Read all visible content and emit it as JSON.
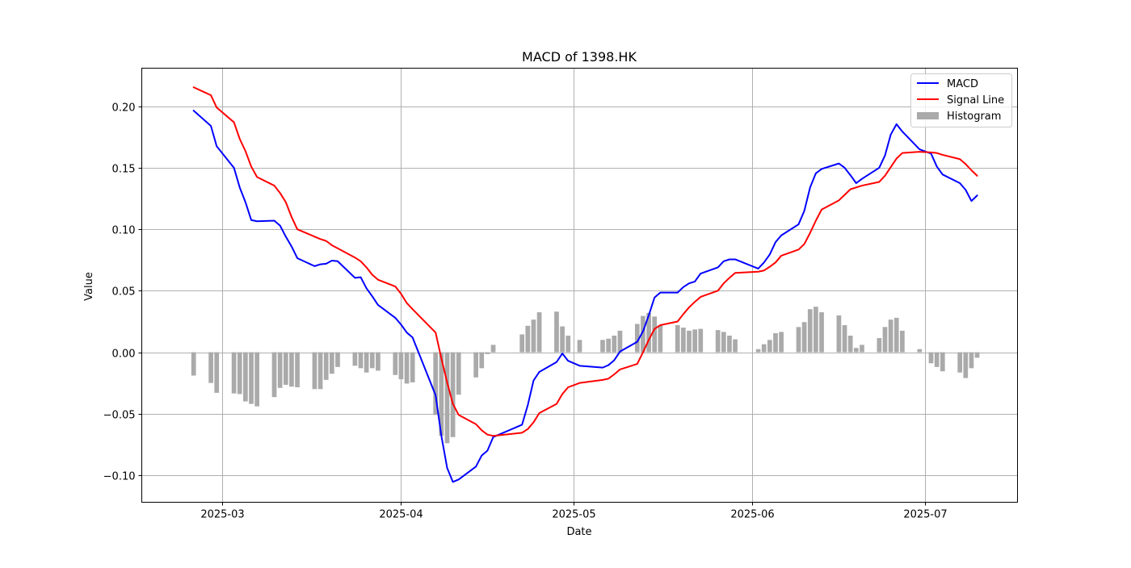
{
  "chart_data": {
    "type": "line",
    "title": "MACD of 1398.HK",
    "xlabel": "Date",
    "ylabel": "Value",
    "x_ticks": [
      "2025-03",
      "2025-04",
      "2025-05",
      "2025-06",
      "2025-07"
    ],
    "x_tick_dates": [
      "2025-03-01",
      "2025-04-01",
      "2025-05-01",
      "2025-06-01",
      "2025-07-01"
    ],
    "y_ticks": [
      -0.1,
      -0.05,
      0.0,
      0.05,
      0.1,
      0.15,
      0.2
    ],
    "y_tick_labels": [
      "−0.10",
      "−0.05",
      "0.00",
      "0.05",
      "0.10",
      "0.15",
      "0.20"
    ],
    "xlim": [
      "2025-02-15",
      "2025-07-17"
    ],
    "ylim": [
      -0.122,
      0.231
    ],
    "grid": true,
    "legend_position": "top-right",
    "colors": {
      "macd": "#0000ff",
      "signal": "#ff0000",
      "histogram": "#aaaaaa",
      "grid": "#b0b0b0"
    },
    "dates": [
      "2025-02-24",
      "2025-02-27",
      "2025-02-28",
      "2025-03-03",
      "2025-03-04",
      "2025-03-05",
      "2025-03-06",
      "2025-03-07",
      "2025-03-10",
      "2025-03-11",
      "2025-03-12",
      "2025-03-13",
      "2025-03-14",
      "2025-03-17",
      "2025-03-18",
      "2025-03-19",
      "2025-03-20",
      "2025-03-21",
      "2025-03-24",
      "2025-03-25",
      "2025-03-26",
      "2025-03-27",
      "2025-03-28",
      "2025-03-31",
      "2025-04-01",
      "2025-04-02",
      "2025-04-03",
      "2025-04-07",
      "2025-04-08",
      "2025-04-09",
      "2025-04-10",
      "2025-04-11",
      "2025-04-14",
      "2025-04-15",
      "2025-04-16",
      "2025-04-17",
      "2025-04-22",
      "2025-04-23",
      "2025-04-24",
      "2025-04-25",
      "2025-04-28",
      "2025-04-29",
      "2025-04-30",
      "2025-05-02",
      "2025-05-06",
      "2025-05-07",
      "2025-05-08",
      "2025-05-09",
      "2025-05-12",
      "2025-05-13",
      "2025-05-14",
      "2025-05-15",
      "2025-05-16",
      "2025-05-19",
      "2025-05-20",
      "2025-05-21",
      "2025-05-22",
      "2025-05-23",
      "2025-05-26",
      "2025-05-27",
      "2025-05-28",
      "2025-05-29",
      "2025-06-02",
      "2025-06-03",
      "2025-06-04",
      "2025-06-05",
      "2025-06-06",
      "2025-06-09",
      "2025-06-10",
      "2025-06-11",
      "2025-06-12",
      "2025-06-13",
      "2025-06-16",
      "2025-06-17",
      "2025-06-18",
      "2025-06-19",
      "2025-06-20",
      "2025-06-23",
      "2025-06-24",
      "2025-06-25",
      "2025-06-26",
      "2025-06-27",
      "2025-06-30",
      "2025-07-02",
      "2025-07-03",
      "2025-07-04",
      "2025-07-07",
      "2025-07-08",
      "2025-07-09",
      "2025-07-10"
    ],
    "series": [
      {
        "name": "MACD",
        "values": [
          0.1965,
          0.184,
          0.1675,
          0.15,
          0.134,
          0.122,
          0.1075,
          0.1065,
          0.107,
          0.103,
          0.094,
          0.086,
          0.0765,
          0.07,
          0.0715,
          0.072,
          0.0745,
          0.074,
          0.0605,
          0.061,
          0.052,
          0.0455,
          0.0385,
          0.028,
          0.0225,
          0.016,
          0.012,
          -0.035,
          -0.068,
          -0.094,
          -0.1055,
          -0.1035,
          -0.093,
          -0.084,
          -0.08,
          -0.069,
          -0.059,
          -0.043,
          -0.023,
          -0.016,
          -0.008,
          -0.001,
          -0.007,
          -0.011,
          -0.0125,
          -0.0105,
          -0.0065,
          0.0005,
          0.0085,
          0.017,
          0.03,
          0.0445,
          0.0485,
          0.0485,
          0.053,
          0.056,
          0.0575,
          0.064,
          0.069,
          0.074,
          0.0755,
          0.0755,
          0.068,
          0.073,
          0.0795,
          0.0895,
          0.095,
          0.104,
          0.115,
          0.134,
          0.1455,
          0.149,
          0.1535,
          0.15,
          0.144,
          0.1375,
          0.141,
          0.15,
          0.16,
          0.177,
          0.1855,
          0.1795,
          0.165,
          0.1615,
          0.151,
          0.1445,
          0.1375,
          0.132,
          0.123,
          0.1275
        ]
      },
      {
        "name": "Signal Line",
        "values": [
          0.2155,
          0.209,
          0.199,
          0.187,
          0.1735,
          0.1635,
          0.151,
          0.1425,
          0.1355,
          0.1295,
          0.122,
          0.11,
          0.1,
          0.094,
          0.092,
          0.0905,
          0.087,
          0.0845,
          0.077,
          0.074,
          0.069,
          0.063,
          0.059,
          0.0535,
          0.0475,
          0.04,
          0.035,
          0.016,
          -0.005,
          -0.0245,
          -0.042,
          -0.051,
          -0.0585,
          -0.0635,
          -0.067,
          -0.068,
          -0.0655,
          -0.0625,
          -0.057,
          -0.0495,
          -0.042,
          -0.034,
          -0.0285,
          -0.025,
          -0.0225,
          -0.0215,
          -0.018,
          -0.014,
          -0.0095,
          0.0,
          0.01,
          0.019,
          0.022,
          0.025,
          0.031,
          0.0365,
          0.041,
          0.045,
          0.05,
          0.056,
          0.0605,
          0.0645,
          0.0655,
          0.0665,
          0.0695,
          0.073,
          0.0785,
          0.0835,
          0.088,
          0.097,
          0.107,
          0.116,
          0.1235,
          0.128,
          0.1325,
          0.134,
          0.1355,
          0.1385,
          0.1435,
          0.1505,
          0.1575,
          0.162,
          0.163,
          0.1625,
          0.162,
          0.1605,
          0.157,
          0.153,
          0.148,
          0.1435
        ]
      },
      {
        "name": "Histogram",
        "values": [
          -0.019,
          -0.025,
          -0.033,
          -0.0335,
          -0.034,
          -0.04,
          -0.042,
          -0.044,
          -0.0365,
          -0.029,
          -0.0265,
          -0.028,
          -0.0285,
          -0.03,
          -0.03,
          -0.0225,
          -0.0175,
          -0.012,
          -0.011,
          -0.013,
          -0.0165,
          -0.013,
          -0.015,
          -0.0185,
          -0.022,
          -0.0255,
          -0.0245,
          -0.051,
          -0.068,
          -0.074,
          -0.069,
          -0.0345,
          -0.0205,
          -0.013,
          -0.0015,
          0.006,
          0.0145,
          0.0215,
          0.0265,
          0.0325,
          0.033,
          0.021,
          0.0135,
          0.01,
          0.01,
          0.011,
          0.0135,
          0.0175,
          0.023,
          0.0295,
          0.032,
          0.029,
          0.022,
          0.022,
          0.02,
          0.0175,
          0.0185,
          0.019,
          0.018,
          0.0165,
          0.0135,
          0.0105,
          0.0025,
          0.0065,
          0.01,
          0.0155,
          0.0165,
          0.0205,
          0.0245,
          0.035,
          0.037,
          0.0325,
          0.03,
          0.022,
          0.0135,
          0.0035,
          0.006,
          0.0115,
          0.0205,
          0.0265,
          0.028,
          0.0175,
          0.0025,
          -0.009,
          -0.012,
          -0.0155,
          -0.0165,
          -0.021,
          -0.013,
          -0.0045
        ]
      }
    ]
  }
}
